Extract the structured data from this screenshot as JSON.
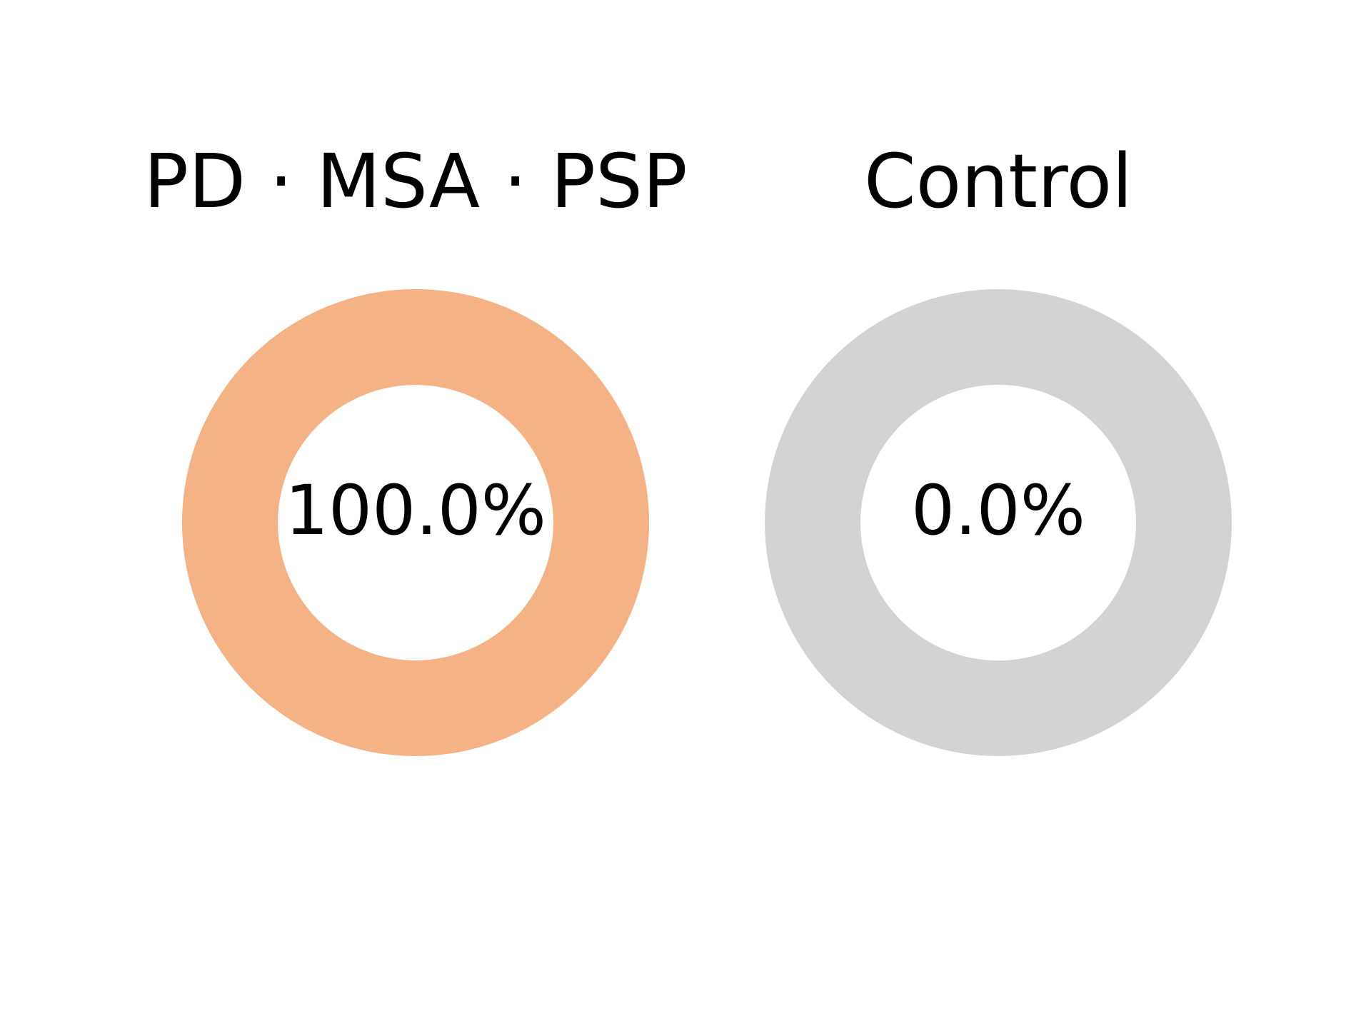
{
  "chart_data": [
    {
      "type": "pie",
      "title": "PD · MSA · PSP",
      "center_label": "100.0%",
      "slices": [
        {
          "value": 100.0,
          "color": "#f4b285"
        }
      ],
      "ring_color": "#f4b285"
    },
    {
      "type": "pie",
      "title": "Control",
      "center_label": "0.0%",
      "slices": [
        {
          "value": 0.0,
          "color": "#f4b285"
        }
      ],
      "ring_color": "#d3d3d3"
    }
  ]
}
